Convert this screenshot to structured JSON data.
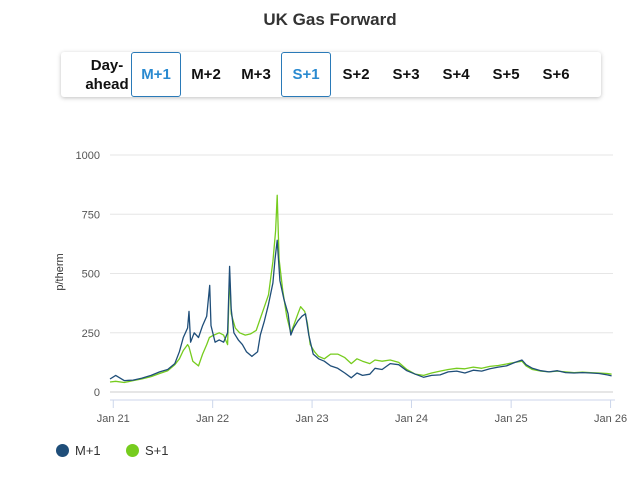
{
  "title": "UK Gas Forward",
  "tabs": [
    {
      "label": "Day-\nahead",
      "active": false
    },
    {
      "label": "M+1",
      "active": true
    },
    {
      "label": "M+2",
      "active": false
    },
    {
      "label": "M+3",
      "active": false
    },
    {
      "label": "S+1",
      "active": true
    },
    {
      "label": "S+2",
      "active": false
    },
    {
      "label": "S+3",
      "active": false
    },
    {
      "label": "S+4",
      "active": false
    },
    {
      "label": "S+5",
      "active": false
    },
    {
      "label": "S+6",
      "active": false
    }
  ],
  "legend": [
    {
      "label": "M+1",
      "color": "#1f4e79"
    },
    {
      "label": "S+1",
      "color": "#76cc1e"
    }
  ],
  "chart_data": {
    "type": "line",
    "title": "UK Gas Forward",
    "ylabel": "p/therm",
    "xlabel": "",
    "ylim": [
      0,
      1000
    ],
    "yticks": [
      0,
      250,
      500,
      750,
      1000
    ],
    "xlim": [
      "2020-12-20",
      "2026-01-10"
    ],
    "xticks": [
      {
        "date": "2021-01-01",
        "label": "Jan 21"
      },
      {
        "date": "2022-01-01",
        "label": "Jan 22"
      },
      {
        "date": "2023-01-01",
        "label": "Jan 23"
      },
      {
        "date": "2024-01-01",
        "label": "Jan 24"
      },
      {
        "date": "2025-01-01",
        "label": "Jan 25"
      },
      {
        "date": "2026-01-01",
        "label": "Jan 26"
      }
    ],
    "grid": true,
    "series": [
      {
        "name": "M+1",
        "color": "#1f4e79",
        "points": [
          [
            "2020-12-20",
            55
          ],
          [
            "2021-01-10",
            70
          ],
          [
            "2021-02-10",
            48
          ],
          [
            "2021-03-15",
            50
          ],
          [
            "2021-04-15",
            58
          ],
          [
            "2021-05-20",
            70
          ],
          [
            "2021-06-20",
            85
          ],
          [
            "2021-07-20",
            95
          ],
          [
            "2021-08-15",
            120
          ],
          [
            "2021-09-01",
            170
          ],
          [
            "2021-09-15",
            230
          ],
          [
            "2021-10-01",
            270
          ],
          [
            "2021-10-06",
            340
          ],
          [
            "2021-10-12",
            210
          ],
          [
            "2021-10-25",
            250
          ],
          [
            "2021-11-10",
            230
          ],
          [
            "2021-11-25",
            280
          ],
          [
            "2021-12-10",
            320
          ],
          [
            "2021-12-21",
            450
          ],
          [
            "2021-12-26",
            280
          ],
          [
            "2022-01-10",
            210
          ],
          [
            "2022-01-25",
            220
          ],
          [
            "2022-02-10",
            210
          ],
          [
            "2022-02-25",
            250
          ],
          [
            "2022-03-04",
            530
          ],
          [
            "2022-03-10",
            350
          ],
          [
            "2022-03-20",
            250
          ],
          [
            "2022-04-05",
            220
          ],
          [
            "2022-04-20",
            200
          ],
          [
            "2022-05-05",
            170
          ],
          [
            "2022-05-25",
            150
          ],
          [
            "2022-06-15",
            170
          ],
          [
            "2022-06-25",
            240
          ],
          [
            "2022-07-10",
            300
          ],
          [
            "2022-07-25",
            370
          ],
          [
            "2022-08-10",
            460
          ],
          [
            "2022-08-18",
            560
          ],
          [
            "2022-08-26",
            640
          ],
          [
            "2022-09-05",
            470
          ],
          [
            "2022-09-20",
            390
          ],
          [
            "2022-10-05",
            330
          ],
          [
            "2022-10-15",
            240
          ],
          [
            "2022-10-25",
            270
          ],
          [
            "2022-11-10",
            300
          ],
          [
            "2022-11-25",
            320
          ],
          [
            "2022-12-08",
            330
          ],
          [
            "2022-12-20",
            240
          ],
          [
            "2023-01-05",
            160
          ],
          [
            "2023-01-25",
            140
          ],
          [
            "2023-02-15",
            130
          ],
          [
            "2023-03-10",
            110
          ],
          [
            "2023-04-05",
            100
          ],
          [
            "2023-05-01",
            80
          ],
          [
            "2023-05-25",
            60
          ],
          [
            "2023-06-15",
            80
          ],
          [
            "2023-07-05",
            70
          ],
          [
            "2023-08-01",
            75
          ],
          [
            "2023-08-20",
            100
          ],
          [
            "2023-09-15",
            95
          ],
          [
            "2023-10-15",
            120
          ],
          [
            "2023-11-15",
            115
          ],
          [
            "2023-12-15",
            90
          ],
          [
            "2024-01-15",
            75
          ],
          [
            "2024-02-15",
            62
          ],
          [
            "2024-03-15",
            70
          ],
          [
            "2024-04-15",
            72
          ],
          [
            "2024-05-15",
            85
          ],
          [
            "2024-06-15",
            88
          ],
          [
            "2024-07-15",
            80
          ],
          [
            "2024-08-15",
            92
          ],
          [
            "2024-09-15",
            88
          ],
          [
            "2024-10-15",
            98
          ],
          [
            "2024-11-15",
            105
          ],
          [
            "2024-12-15",
            110
          ],
          [
            "2025-01-15",
            125
          ],
          [
            "2025-02-10",
            135
          ],
          [
            "2025-02-25",
            115
          ],
          [
            "2025-03-20",
            100
          ],
          [
            "2025-04-20",
            90
          ],
          [
            "2025-05-20",
            85
          ],
          [
            "2025-06-20",
            90
          ],
          [
            "2025-07-20",
            82
          ],
          [
            "2025-08-20",
            80
          ],
          [
            "2025-09-20",
            82
          ],
          [
            "2025-10-20",
            80
          ],
          [
            "2025-11-20",
            78
          ],
          [
            "2025-12-20",
            72
          ],
          [
            "2026-01-05",
            68
          ]
        ]
      },
      {
        "name": "S+1",
        "color": "#76cc1e",
        "points": [
          [
            "2020-12-20",
            42
          ],
          [
            "2021-01-10",
            45
          ],
          [
            "2021-02-10",
            40
          ],
          [
            "2021-03-15",
            48
          ],
          [
            "2021-04-15",
            55
          ],
          [
            "2021-05-20",
            65
          ],
          [
            "2021-06-20",
            78
          ],
          [
            "2021-07-20",
            90
          ],
          [
            "2021-08-15",
            115
          ],
          [
            "2021-09-01",
            140
          ],
          [
            "2021-09-15",
            175
          ],
          [
            "2021-10-01",
            200
          ],
          [
            "2021-10-06",
            190
          ],
          [
            "2021-10-20",
            130
          ],
          [
            "2021-11-10",
            110
          ],
          [
            "2021-11-25",
            160
          ],
          [
            "2021-12-10",
            200
          ],
          [
            "2021-12-20",
            230
          ],
          [
            "2022-01-05",
            240
          ],
          [
            "2022-01-25",
            250
          ],
          [
            "2022-02-10",
            240
          ],
          [
            "2022-02-25",
            200
          ],
          [
            "2022-03-04",
            490
          ],
          [
            "2022-03-10",
            330
          ],
          [
            "2022-03-25",
            270
          ],
          [
            "2022-04-10",
            250
          ],
          [
            "2022-05-01",
            240
          ],
          [
            "2022-05-20",
            245
          ],
          [
            "2022-06-10",
            260
          ],
          [
            "2022-06-25",
            310
          ],
          [
            "2022-07-10",
            360
          ],
          [
            "2022-07-25",
            410
          ],
          [
            "2022-08-10",
            550
          ],
          [
            "2022-08-20",
            680
          ],
          [
            "2022-08-26",
            830
          ],
          [
            "2022-09-02",
            560
          ],
          [
            "2022-09-15",
            430
          ],
          [
            "2022-09-30",
            320
          ],
          [
            "2022-10-15",
            250
          ],
          [
            "2022-10-25",
            280
          ],
          [
            "2022-11-10",
            330
          ],
          [
            "2022-11-20",
            360
          ],
          [
            "2022-12-05",
            340
          ],
          [
            "2022-12-15",
            290
          ],
          [
            "2022-12-25",
            200
          ],
          [
            "2023-01-10",
            170
          ],
          [
            "2023-01-25",
            150
          ],
          [
            "2023-02-15",
            140
          ],
          [
            "2023-03-10",
            160
          ],
          [
            "2023-04-05",
            160
          ],
          [
            "2023-05-01",
            145
          ],
          [
            "2023-05-25",
            120
          ],
          [
            "2023-06-15",
            140
          ],
          [
            "2023-07-05",
            130
          ],
          [
            "2023-08-01",
            120
          ],
          [
            "2023-08-20",
            135
          ],
          [
            "2023-09-15",
            130
          ],
          [
            "2023-10-15",
            135
          ],
          [
            "2023-11-15",
            125
          ],
          [
            "2023-12-15",
            95
          ],
          [
            "2024-01-15",
            75
          ],
          [
            "2024-02-15",
            70
          ],
          [
            "2024-03-15",
            80
          ],
          [
            "2024-04-15",
            88
          ],
          [
            "2024-05-15",
            95
          ],
          [
            "2024-06-15",
            100
          ],
          [
            "2024-07-15",
            98
          ],
          [
            "2024-08-15",
            105
          ],
          [
            "2024-09-15",
            100
          ],
          [
            "2024-10-15",
            108
          ],
          [
            "2024-11-15",
            112
          ],
          [
            "2024-12-15",
            118
          ],
          [
            "2025-01-15",
            125
          ],
          [
            "2025-02-10",
            130
          ],
          [
            "2025-02-25",
            110
          ],
          [
            "2025-03-20",
            95
          ],
          [
            "2025-04-20",
            88
          ],
          [
            "2025-05-20",
            85
          ],
          [
            "2025-06-20",
            88
          ],
          [
            "2025-07-20",
            85
          ],
          [
            "2025-08-20",
            82
          ],
          [
            "2025-09-20",
            84
          ],
          [
            "2025-10-20",
            82
          ],
          [
            "2025-11-20",
            80
          ],
          [
            "2025-12-20",
            78
          ],
          [
            "2026-01-05",
            75
          ]
        ]
      }
    ]
  }
}
